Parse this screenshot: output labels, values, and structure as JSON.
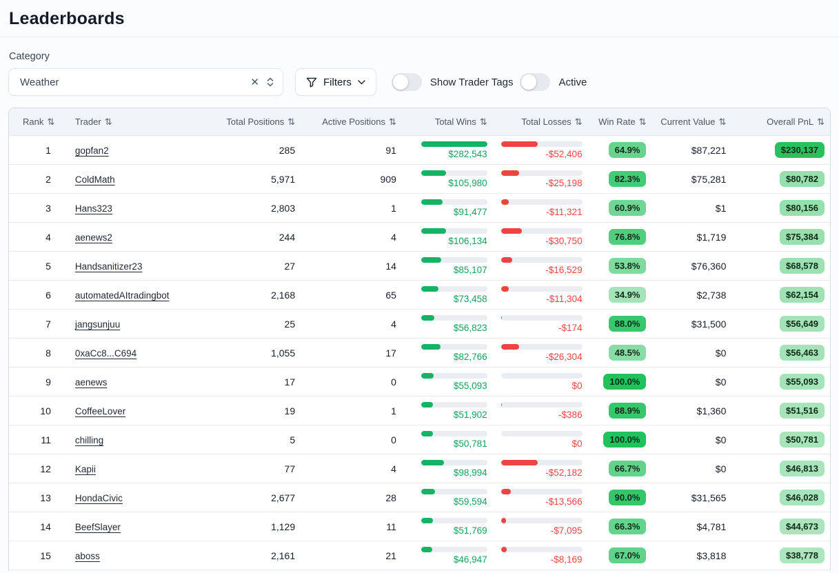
{
  "page": {
    "title": "Leaderboards"
  },
  "icons": {
    "sort": "⇅",
    "clear": "✕"
  },
  "colors": {
    "bar_green": "#16b364",
    "bar_red": "#ef4444",
    "win_text_green": "#17a05e",
    "loss_text_red": "#ef4444",
    "badge_strong_green": "#1fc25c",
    "badge_light_green": "#a5e3b8",
    "header_bg": "#f1f4f8"
  },
  "filters": {
    "category_label": "Category",
    "category_value": "Weather",
    "filters_label": "Filters",
    "show_trader_tags_label": "Show Trader Tags",
    "active_label": "Active",
    "show_trader_tags_on": false,
    "active_on": false
  },
  "table": {
    "columns": [
      "Rank",
      "Trader",
      "Total Positions",
      "Active Positions",
      "Total Wins",
      "Total Losses",
      "Win Rate",
      "Current Value",
      "Overall PnL"
    ],
    "rows": [
      {
        "rank": "1",
        "trader": "gopfan2",
        "total_positions": "285",
        "active_positions": "91",
        "total_wins": "$282,543",
        "total_losses": "-$52,406",
        "win_rate": "64.9%",
        "current_value": "$87,221",
        "overall_pnl": "$230,137",
        "win_bar_pct": 100,
        "loss_bar_pct": 45,
        "win_rate_color": "#67d48e",
        "pnl_color": "#29c05d"
      },
      {
        "rank": "2",
        "trader": "ColdMath",
        "total_positions": "5,971",
        "active_positions": "909",
        "total_wins": "$105,980",
        "total_losses": "-$25,198",
        "win_rate": "82.3%",
        "current_value": "$75,281",
        "overall_pnl": "$80,782",
        "win_bar_pct": 37.5,
        "loss_bar_pct": 22,
        "win_rate_color": "#44cb75",
        "pnl_color": "#97dfad"
      },
      {
        "rank": "3",
        "trader": "Hans323",
        "total_positions": "2,803",
        "active_positions": "1",
        "total_wins": "$91,477",
        "total_losses": "-$11,321",
        "win_rate": "60.9%",
        "current_value": "$1",
        "overall_pnl": "$80,156",
        "win_bar_pct": 32.4,
        "loss_bar_pct": 10,
        "win_rate_color": "#70d695",
        "pnl_color": "#97dfad"
      },
      {
        "rank": "4",
        "trader": "aenews2",
        "total_positions": "244",
        "active_positions": "4",
        "total_wins": "$106,134",
        "total_losses": "-$30,750",
        "win_rate": "76.8%",
        "current_value": "$1,719",
        "overall_pnl": "$75,384",
        "win_bar_pct": 37.6,
        "loss_bar_pct": 26,
        "win_rate_color": "#4fce7d",
        "pnl_color": "#9ae0af"
      },
      {
        "rank": "5",
        "trader": "Handsanitizer23",
        "total_positions": "27",
        "active_positions": "14",
        "total_wins": "$85,107",
        "total_losses": "-$16,529",
        "win_rate": "53.8%",
        "current_value": "$76,360",
        "overall_pnl": "$68,578",
        "win_bar_pct": 30.1,
        "loss_bar_pct": 14,
        "win_rate_color": "#7eda9d",
        "pnl_color": "#9de1b2"
      },
      {
        "rank": "6",
        "trader": "automatedAItradingbot",
        "total_positions": "2,168",
        "active_positions": "65",
        "total_wins": "$73,458",
        "total_losses": "-$11,304",
        "win_rate": "34.9%",
        "current_value": "$2,738",
        "overall_pnl": "$62,154",
        "win_bar_pct": 26.0,
        "loss_bar_pct": 10,
        "win_rate_color": "#a5e3b8",
        "pnl_color": "#a1e2b5"
      },
      {
        "rank": "7",
        "trader": "jangsunjuu",
        "total_positions": "25",
        "active_positions": "4",
        "total_wins": "$56,823",
        "total_losses": "-$174",
        "win_rate": "88.0%",
        "current_value": "$31,500",
        "overall_pnl": "$56,649",
        "win_bar_pct": 20.1,
        "loss_bar_pct": 1,
        "win_rate_color": "#38c76c",
        "pnl_color": "#a4e3b7"
      },
      {
        "rank": "8",
        "trader": "0xaCc8...C694",
        "total_positions": "1,055",
        "active_positions": "17",
        "total_wins": "$82,766",
        "total_losses": "-$26,304",
        "win_rate": "48.5%",
        "current_value": "$0",
        "overall_pnl": "$56,463",
        "win_bar_pct": 29.3,
        "loss_bar_pct": 22,
        "win_rate_color": "#89dca5",
        "pnl_color": "#a4e3b7"
      },
      {
        "rank": "9",
        "trader": "aenews",
        "total_positions": "17",
        "active_positions": "0",
        "total_wins": "$55,093",
        "total_losses": "$0",
        "win_rate": "100.0%",
        "current_value": "$0",
        "overall_pnl": "$55,093",
        "win_bar_pct": 19.5,
        "loss_bar_pct": 0,
        "win_rate_color": "#1fc25c",
        "pnl_color": "#a5e3b8"
      },
      {
        "rank": "10",
        "trader": "CoffeeLover",
        "total_positions": "19",
        "active_positions": "1",
        "total_wins": "$51,902",
        "total_losses": "-$386",
        "win_rate": "88.9%",
        "current_value": "$1,360",
        "overall_pnl": "$51,516",
        "win_bar_pct": 18.4,
        "loss_bar_pct": 1,
        "win_rate_color": "#36c76b",
        "pnl_color": "#a7e4ba"
      },
      {
        "rank": "11",
        "trader": "chilling",
        "total_positions": "5",
        "active_positions": "0",
        "total_wins": "$50,781",
        "total_losses": "$0",
        "win_rate": "100.0%",
        "current_value": "$0",
        "overall_pnl": "$50,781",
        "win_bar_pct": 18.0,
        "loss_bar_pct": 0,
        "win_rate_color": "#1fc25c",
        "pnl_color": "#a7e4ba"
      },
      {
        "rank": "12",
        "trader": "Kapii",
        "total_positions": "77",
        "active_positions": "4",
        "total_wins": "$98,994",
        "total_losses": "-$52,182",
        "win_rate": "66.7%",
        "current_value": "$0",
        "overall_pnl": "$46,813",
        "win_bar_pct": 35.0,
        "loss_bar_pct": 45,
        "win_rate_color": "#63d38b",
        "pnl_color": "#a9e5bc"
      },
      {
        "rank": "13",
        "trader": "HondaCivic",
        "total_positions": "2,677",
        "active_positions": "28",
        "total_wins": "$59,594",
        "total_losses": "-$13,566",
        "win_rate": "90.0%",
        "current_value": "$31,565",
        "overall_pnl": "$46,028",
        "win_bar_pct": 21.1,
        "loss_bar_pct": 12,
        "win_rate_color": "#34c669",
        "pnl_color": "#a9e5bc"
      },
      {
        "rank": "14",
        "trader": "BeefSlayer",
        "total_positions": "1,129",
        "active_positions": "11",
        "total_wins": "$51,769",
        "total_losses": "-$7,095",
        "win_rate": "66.3%",
        "current_value": "$4,781",
        "overall_pnl": "$44,673",
        "win_bar_pct": 18.3,
        "loss_bar_pct": 6,
        "win_rate_color": "#64d38c",
        "pnl_color": "#aae5bd"
      },
      {
        "rank": "15",
        "trader": "aboss",
        "total_positions": "2,161",
        "active_positions": "21",
        "total_wins": "$46,947",
        "total_losses": "-$8,169",
        "win_rate": "67.0%",
        "current_value": "$3,818",
        "overall_pnl": "$38,778",
        "win_bar_pct": 16.6,
        "loss_bar_pct": 7,
        "win_rate_color": "#62d28a",
        "pnl_color": "#ace6bf"
      }
    ]
  }
}
